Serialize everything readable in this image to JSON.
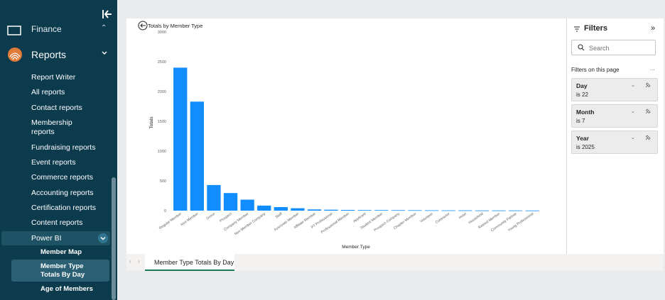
{
  "sidebar": {
    "finance_label": "Finance",
    "reports_label": "Reports",
    "report_items": [
      "Report Writer",
      "All reports",
      "Contact reports",
      "Membership reports",
      "Fundraising reports",
      "Event reports",
      "Commerce reports",
      "Accounting reports",
      "Certification reports",
      "Content reports"
    ],
    "powerbi_label": "Power BI",
    "powerbi_items": [
      "Member Map",
      "Member Type Totals By Day",
      "Age of Members"
    ]
  },
  "chart_data": {
    "type": "bar",
    "title": "Totals by Member Type",
    "xlabel": "Member Type",
    "ylabel": "Totals",
    "ylim": [
      0,
      3000
    ],
    "yticks": [
      0,
      500,
      1000,
      1500,
      2000,
      2500,
      3000
    ],
    "grid": false,
    "color": "#118dff",
    "categories": [
      "Regular Member",
      "Non Member",
      "Donor",
      "Prospect",
      "Company Member",
      "Non Member Company",
      "Staff",
      "Associate Member",
      "Affiliate Member",
      "PT Professional",
      "Professional Member",
      "Applicant",
      "Student Member",
      "Prospect Company",
      "Chapter Member",
      "Volunteer",
      "Contractor",
      "Hotel",
      "Household",
      "Retired Member",
      "Community Partner",
      "Young Professional"
    ],
    "values": [
      2400,
      1830,
      430,
      295,
      185,
      85,
      60,
      40,
      20,
      15,
      12,
      10,
      9,
      8,
      7,
      6,
      5,
      5,
      4,
      3,
      3,
      2
    ]
  },
  "filters": {
    "title": "Filters",
    "search_placeholder": "Search",
    "on_page_label": "Filters on this page",
    "more": "...",
    "items": [
      {
        "name": "Day",
        "value": "is 22"
      },
      {
        "name": "Month",
        "value": "is 7"
      },
      {
        "name": "Year",
        "value": "is 2025"
      }
    ]
  },
  "tabs": {
    "active": "Member Type Totals By Day",
    "prev": "‹",
    "next": "›"
  },
  "icons": {
    "collapse": "collapse-sidebar-icon",
    "back": "back-arrow-icon",
    "filter": "filter-icon",
    "search": "search-icon"
  }
}
